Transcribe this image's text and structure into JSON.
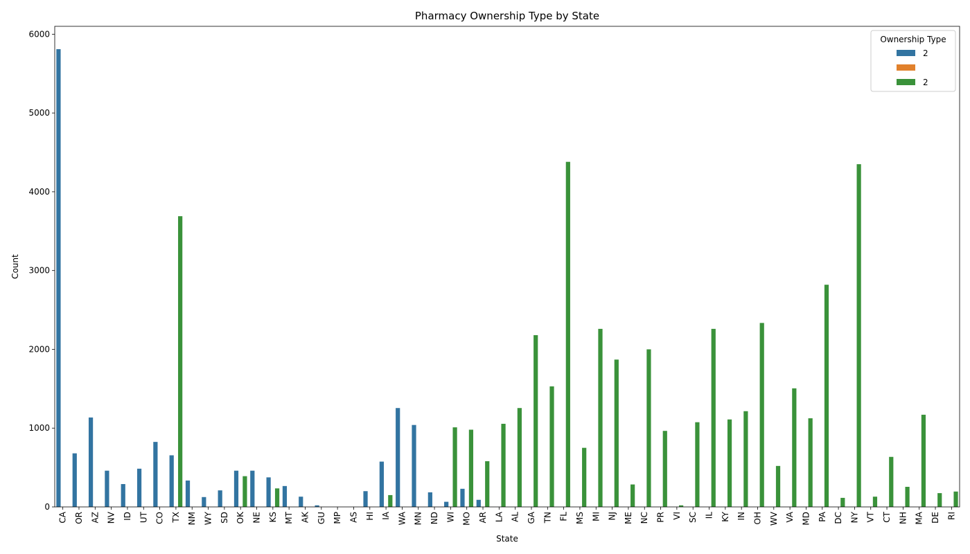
{
  "chart_data": {
    "type": "bar",
    "title": "Pharmacy Ownership Type by State",
    "xlabel": "State",
    "ylabel": "Count",
    "ylim": [
      0,
      6100
    ],
    "yticks": [
      0,
      1000,
      2000,
      3000,
      4000,
      5000,
      6000
    ],
    "grid": false,
    "legend": {
      "title": "Ownership Type",
      "placement": "top-right"
    },
    "categories": [
      "CA",
      "OR",
      "AZ",
      "NV",
      "ID",
      "UT",
      "CO",
      "TX",
      "NM",
      "WY",
      "SD",
      "OK",
      "NE",
      "KS",
      "MT",
      "AK",
      "GU",
      "MP",
      "AS",
      "HI",
      "IA",
      "WA",
      "MN",
      "ND",
      "WI",
      "MO",
      "AR",
      "LA",
      "AL",
      "GA",
      "TN",
      "FL",
      "MS",
      "MI",
      "NJ",
      "ME",
      "NC",
      "PR",
      "VI",
      "SC",
      "IL",
      "KY",
      "IN",
      "OH",
      "WV",
      "VA",
      "MD",
      "PA",
      "DC",
      "NY",
      "VT",
      "CT",
      "NH",
      "MA",
      "DE",
      "RI"
    ],
    "series": [
      {
        "name": "2",
        "color": "#3274a1",
        "values": [
          5810,
          680,
          1135,
          460,
          290,
          485,
          825,
          655,
          335,
          125,
          210,
          460,
          460,
          375,
          265,
          130,
          20,
          0,
          0,
          200,
          575,
          1255,
          1040,
          185,
          65,
          230,
          90,
          0,
          0,
          0,
          0,
          0,
          0,
          0,
          0,
          0,
          0,
          0,
          0,
          0,
          0,
          0,
          0,
          0,
          0,
          0,
          0,
          0,
          0,
          0,
          0,
          0,
          0,
          0,
          0,
          0
        ]
      },
      {
        "name": "",
        "color": "#e1812c",
        "values": [
          0,
          0,
          0,
          0,
          0,
          0,
          0,
          0,
          0,
          0,
          0,
          0,
          0,
          0,
          0,
          0,
          0,
          0,
          0,
          0,
          0,
          0,
          0,
          0,
          0,
          0,
          0,
          0,
          0,
          0,
          0,
          0,
          0,
          0,
          0,
          0,
          0,
          0,
          0,
          0,
          0,
          0,
          0,
          0,
          0,
          0,
          0,
          0,
          0,
          0,
          0,
          0,
          0,
          0,
          0,
          0
        ]
      },
      {
        "name": "2",
        "color": "#3a923a",
        "values": [
          0,
          0,
          0,
          0,
          0,
          0,
          0,
          3690,
          0,
          0,
          0,
          390,
          0,
          235,
          0,
          0,
          0,
          0,
          0,
          0,
          150,
          0,
          0,
          0,
          1010,
          980,
          580,
          1055,
          1255,
          2180,
          1530,
          4380,
          750,
          2260,
          1870,
          285,
          2000,
          965,
          20,
          1075,
          2260,
          1110,
          1215,
          2335,
          520,
          1505,
          1125,
          2820,
          115,
          4350,
          130,
          635,
          255,
          1170,
          175,
          195
        ]
      }
    ]
  }
}
